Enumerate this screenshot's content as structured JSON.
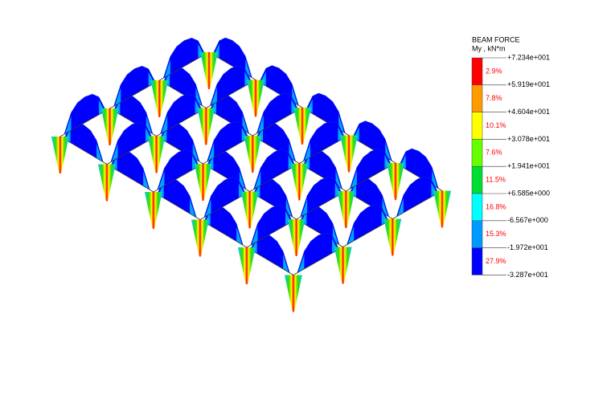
{
  "legend": {
    "title": "BEAM FORCE",
    "unit": "My , kN*m",
    "levels": [
      "+7.234e+001",
      "+5.919e+001",
      "+4.604e+001",
      "+3.078e+001",
      "+1.941e+001",
      "+6.585e+000",
      "-6.567e+000",
      "-1.972e+001",
      "-3.287e+001"
    ],
    "percents": [
      "2.9%",
      "7.8%",
      "10.1%",
      "7.6%",
      "11.5%",
      "16.8%",
      "15.3%",
      "27.9%"
    ],
    "colors": [
      "#ff0000",
      "#ff9a00",
      "#ffff00",
      "#66ff00",
      "#00dd33",
      "#00ffff",
      "#0099ff",
      "#0000ff"
    ]
  }
}
